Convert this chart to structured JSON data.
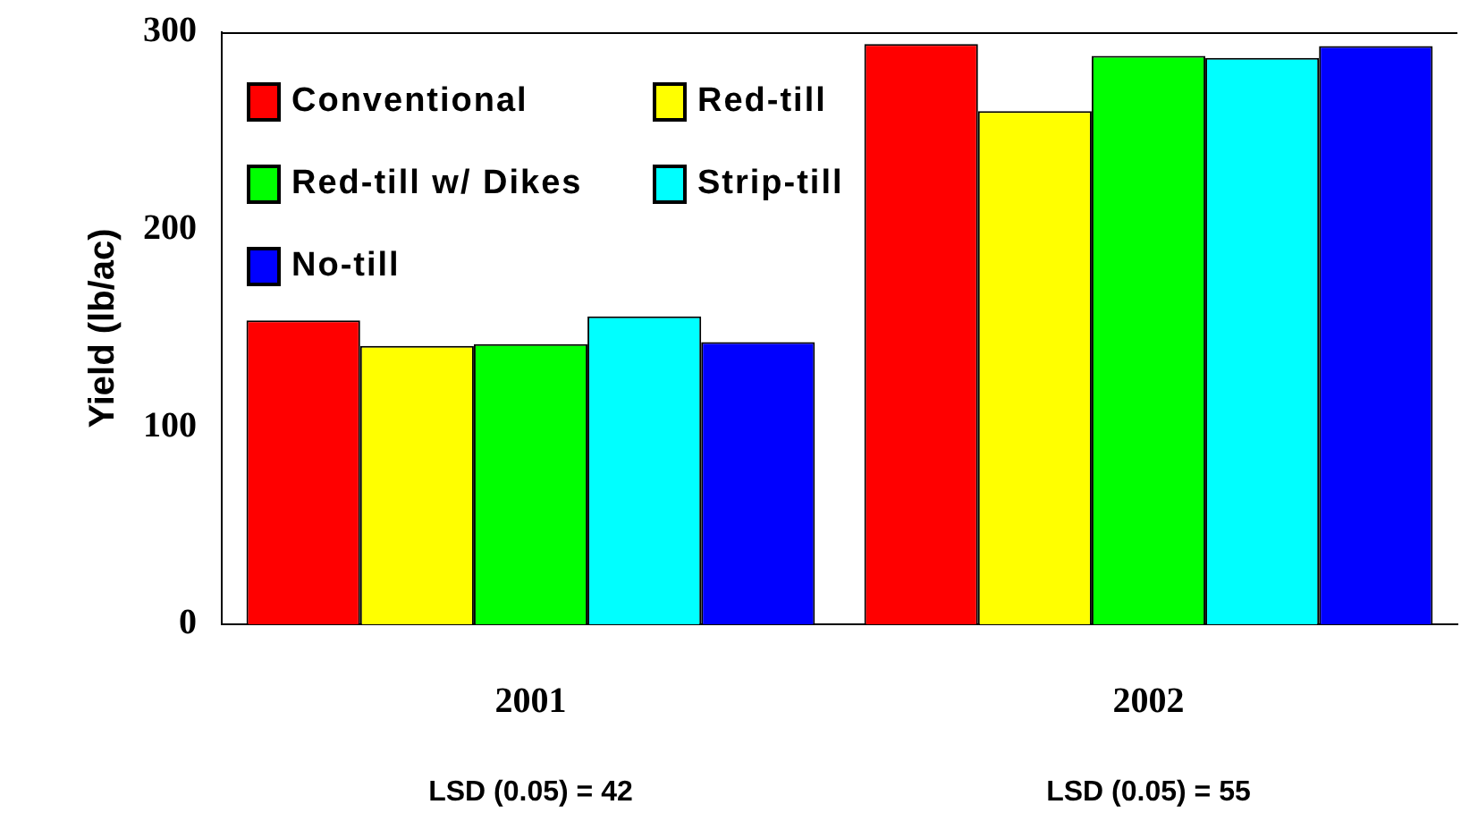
{
  "chart_data": {
    "type": "bar",
    "ylabel": "Yield (lb/ac)",
    "categories": [
      "2001",
      "2002"
    ],
    "series": [
      {
        "name": "Conventional",
        "color": "#ff0000",
        "values": [
          154,
          294
        ]
      },
      {
        "name": "Red-till",
        "color": "#ffff00",
        "values": [
          141,
          260
        ]
      },
      {
        "name": "Red-till w/ Dikes",
        "color": "#00ff00",
        "values": [
          142,
          288
        ]
      },
      {
        "name": "Strip-till",
        "color": "#00ffff",
        "values": [
          156,
          287
        ]
      },
      {
        "name": "No-till",
        "color": "#0000ff",
        "values": [
          143,
          293
        ]
      }
    ],
    "ylim": [
      0,
      300
    ],
    "yticks": [
      0,
      100,
      200,
      300
    ],
    "legend": "top left",
    "annotations": [
      "LSD (0.05) = 42",
      "LSD (0.05) = 55"
    ]
  }
}
